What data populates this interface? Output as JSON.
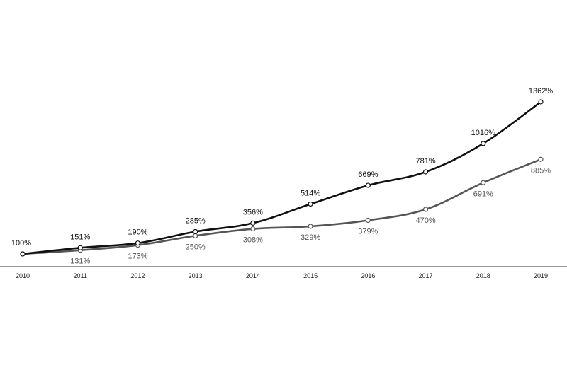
{
  "chart_data": {
    "type": "line",
    "title": "",
    "xlabel": "",
    "ylabel": "",
    "x": [
      "2010",
      "2011",
      "2012",
      "2013",
      "2014",
      "2015",
      "2016",
      "2017",
      "2018",
      "2019"
    ],
    "series": [
      {
        "color": "#111111",
        "values": [
          100,
          151,
          190,
          285,
          356,
          514,
          669,
          781,
          1016,
          1362
        ],
        "labels": [
          "100%",
          "151%",
          "190%",
          "285%",
          "356%",
          "514%",
          "669%",
          "781%",
          "1016%",
          "1362%"
        ]
      },
      {
        "color": "#555555",
        "values": [
          100,
          131,
          173,
          250,
          308,
          329,
          379,
          470,
          691,
          885
        ],
        "labels": [
          "",
          "131%",
          "173%",
          "250%",
          "308%",
          "329%",
          "379%",
          "470%",
          "691%",
          "885%"
        ]
      }
    ],
    "ylim": [
      100,
      1362
    ],
    "grid": false,
    "legend": "none"
  }
}
